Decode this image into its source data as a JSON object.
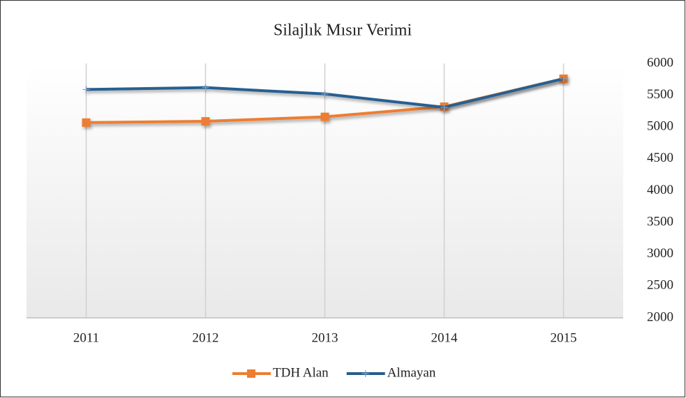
{
  "chart_data": {
    "type": "line",
    "title": "Silajlık Mısır Verimi",
    "categories": [
      "2011",
      "2012",
      "2013",
      "2014",
      "2015"
    ],
    "series": [
      {
        "name": "TDH Alan",
        "color": "#ed7d31",
        "marker": "square",
        "values": [
          5070,
          5090,
          5160,
          5320,
          5760
        ]
      },
      {
        "name": "Almayan",
        "color": "#255e91",
        "marker": "plus",
        "values": [
          5590,
          5620,
          5520,
          5310,
          5760
        ]
      }
    ],
    "ylim": [
      2000,
      6000
    ],
    "yticks": [
      2000,
      2500,
      3000,
      3500,
      4000,
      4500,
      5000,
      5500,
      6000
    ],
    "y_axis_side": "right",
    "grid": false,
    "legend": "bottom"
  }
}
